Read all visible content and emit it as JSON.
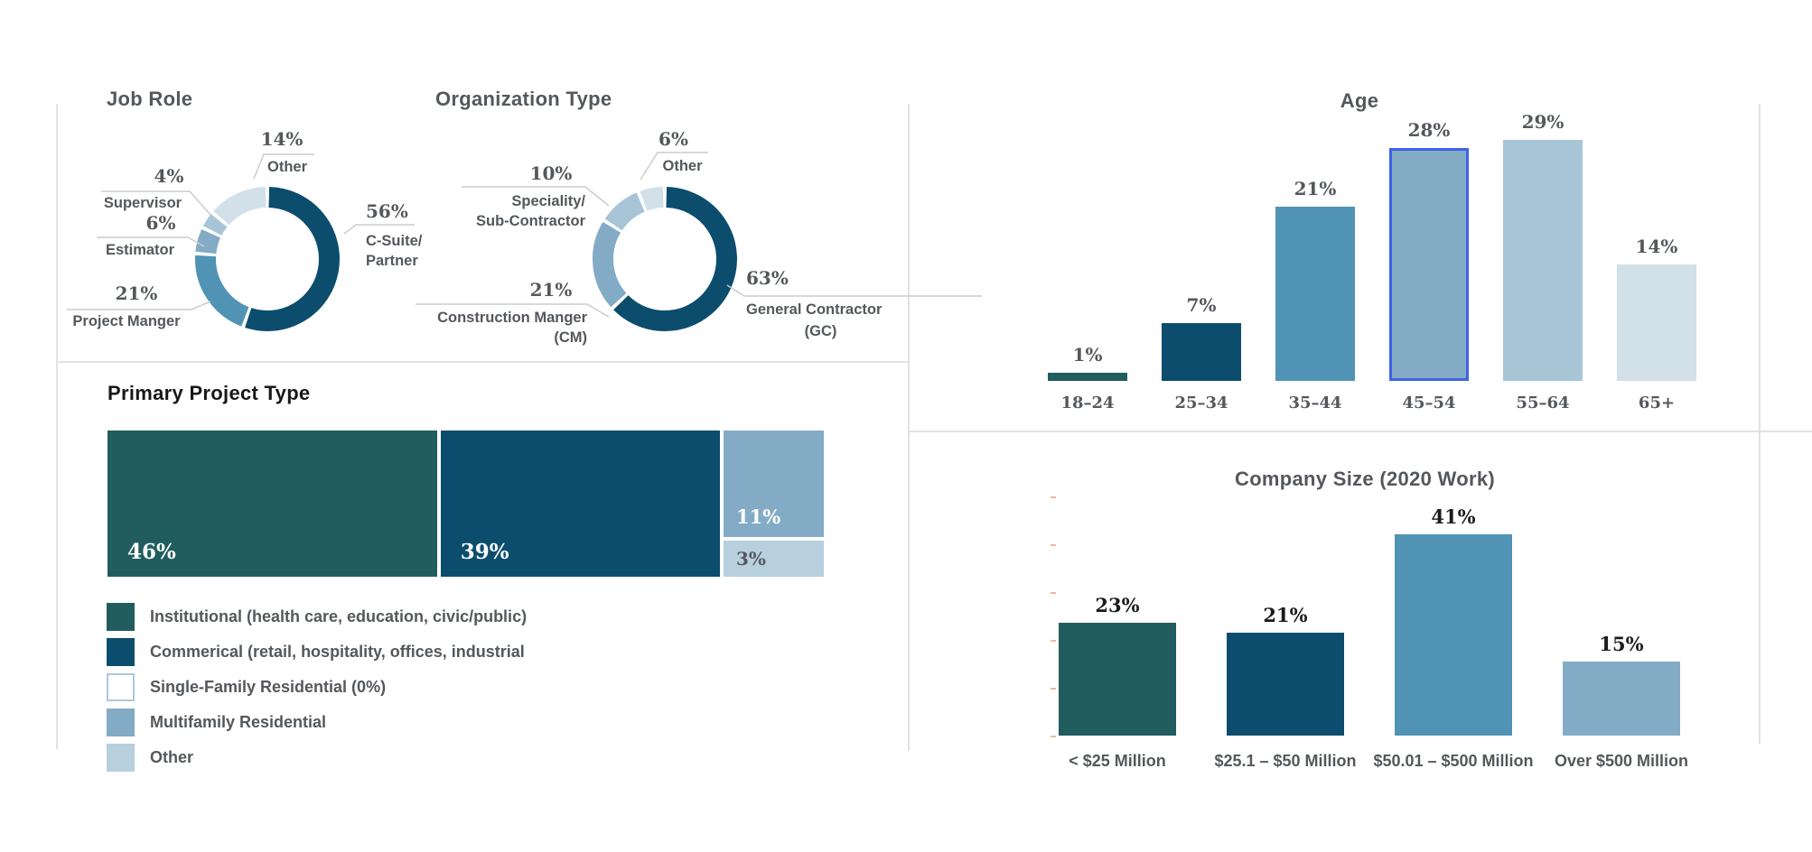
{
  "page_bg": "#ffffff",
  "palette": {
    "teal": "#215d5e",
    "navy": "#0c4d6e",
    "medium_blue": "#5093b5",
    "steel_blue": "#84abc6",
    "light_blue": "#a8c5d8",
    "lighter_blue": "#b8cfde",
    "pale_blue": "#d2e0ea",
    "highlight_outline": "#3e63e8",
    "border_gray": "#e2e2e2",
    "text_gray": "#54585c",
    "text_black": "#1a1b1c",
    "leader_line": "#cccccc"
  },
  "chart_data": [
    {
      "id": "job_role",
      "type": "donut",
      "title": "Job Role",
      "legend_position": "callouts",
      "segments": [
        {
          "label": "C-Suite/Partner",
          "value": 56,
          "value_text": "56%",
          "label_lines": [
            "C-Suite/",
            "Partner"
          ],
          "color": "#0c4d6e"
        },
        {
          "label": "Project Manger",
          "value": 21,
          "value_text": "21%",
          "label_lines": [
            "Project Manger"
          ],
          "color": "#5093b5"
        },
        {
          "label": "Estimator",
          "value": 6,
          "value_text": "6%",
          "label_lines": [
            "Estimator"
          ],
          "color": "#84abc6"
        },
        {
          "label": "Supervisor",
          "value": 4,
          "value_text": "4%",
          "label_lines": [
            "Supervisor"
          ],
          "color": "#a8c5d8"
        },
        {
          "label": "Other",
          "value": 14,
          "value_text": "14%",
          "label_lines": [
            "Other"
          ],
          "color": "#d2e0ea"
        }
      ]
    },
    {
      "id": "organization_type",
      "type": "donut",
      "title": "Organization Type",
      "legend_position": "callouts",
      "segments": [
        {
          "label": "General Contractor (GC)",
          "value": 63,
          "value_text": "63%",
          "label_lines": [
            "General Contractor",
            "(GC)"
          ],
          "color": "#0c4d6e"
        },
        {
          "label": "Construction Manger (CM)",
          "value": 21,
          "value_text": "21%",
          "label_lines": [
            "Construction Manger",
            "(CM)"
          ],
          "color": "#84abc6"
        },
        {
          "label": "Speciality/Sub-Contractor",
          "value": 10,
          "value_text": "10%",
          "label_lines": [
            "Speciality/",
            "Sub-Contractor"
          ],
          "color": "#a8c5d8"
        },
        {
          "label": "Other",
          "value": 6,
          "value_text": "6%",
          "label_lines": [
            "Other"
          ],
          "color": "#d2e0ea"
        }
      ]
    },
    {
      "id": "age",
      "type": "bar",
      "title": "Age",
      "categories": [
        "18–24",
        "25–34",
        "35–44",
        "45–54",
        "55–64",
        "65+"
      ],
      "values": [
        1,
        7,
        21,
        28,
        29,
        14
      ],
      "value_labels": [
        "1%",
        "7%",
        "21%",
        "28%",
        "29%",
        "14%"
      ],
      "colors": [
        "#215d5e",
        "#0c4d6e",
        "#5093b5",
        "#84abc6",
        "#a8c5d8",
        "#d2e0ea"
      ],
      "highlighted_index": 3,
      "highlight_color": "#3e63e8",
      "ylim": [
        0,
        30
      ],
      "grid": false
    },
    {
      "id": "primary_project_type",
      "type": "stacked_bar",
      "title": "Primary Project Type",
      "segments": [
        {
          "label": "Institutional (health care, education, civic/public)",
          "value": 46,
          "value_text": "46%",
          "color": "#215d5e",
          "text_color": "#ffffff"
        },
        {
          "label": "Commerical (retail, hospitality, offices, industrial",
          "value": 39,
          "value_text": "39%",
          "color": "#0c4d6e",
          "text_color": "#ffffff"
        },
        {
          "label": "Multifamily Residential",
          "value": 11,
          "value_text": "11%",
          "color": "#84abc6",
          "text_color": "#ffffff"
        },
        {
          "label": "Other",
          "value": 3,
          "value_text": "3%",
          "color": "#b8cfde",
          "text_color": "#54585c"
        }
      ],
      "legend": [
        {
          "label": "Institutional (health care, education, civic/public)",
          "color": "#215d5e"
        },
        {
          "label": "Commerical (retail, hospitality, offices, industrial",
          "color": "#0c4d6e"
        },
        {
          "label": "Single-Family Residential (0%)",
          "color": "#ffffff",
          "border": "#aac9db"
        },
        {
          "label": "Multifamily Residential",
          "color": "#84abc6"
        },
        {
          "label": "Other",
          "color": "#b8cfde"
        }
      ]
    },
    {
      "id": "company_size",
      "type": "bar",
      "title": "Company Size (2020 Work)",
      "categories": [
        "< $25 Million",
        "$25.1 – $50 Million",
        "$50.01 – $500 Million",
        "Over $500 Million"
      ],
      "values": [
        23,
        21,
        41,
        15
      ],
      "value_labels": [
        "23%",
        "21%",
        "41%",
        "15%"
      ],
      "colors": [
        "#215d5e",
        "#0c4d6e",
        "#5093b5",
        "#84abc6"
      ],
      "ylim": [
        0,
        45
      ],
      "grid": false
    }
  ]
}
